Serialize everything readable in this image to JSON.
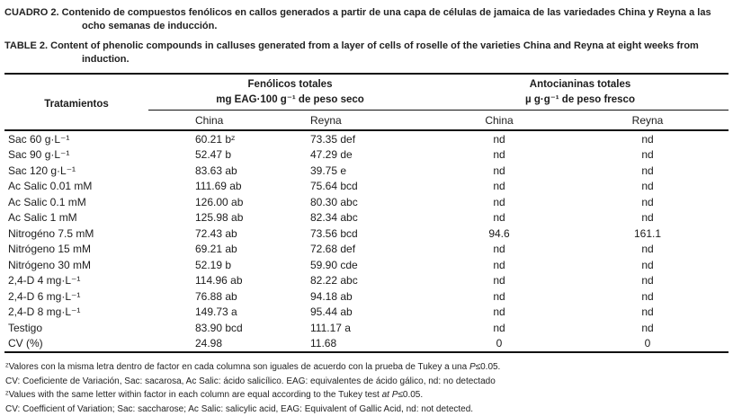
{
  "captions": {
    "es": {
      "label": "CUADRO 2.",
      "text": "Contenido de compuestos fenólicos en callos generados a partir de una capa de células de jamaica de las variedades China y Reyna a las ocho semanas de inducción."
    },
    "en": {
      "label": "TABLE 2.",
      "text": "Content of phenolic compounds in calluses generated from a layer of cells of roselle of the varieties China and Reyna at eight weeks from induction."
    }
  },
  "table": {
    "treatments_header": "Tratamientos",
    "groups": [
      {
        "title": "Fenólicos totales",
        "units": "mg EAG·100 g⁻¹ de peso seco",
        "subcols": [
          "China",
          "Reyna"
        ]
      },
      {
        "title": "Antocianinas totales",
        "units": "µ g·g⁻¹ de peso fresco",
        "subcols": [
          "China",
          "Reyna"
        ]
      }
    ],
    "rows": [
      {
        "treatment": "Sac 60 g·L⁻¹",
        "fen_china": "60.21 bᶻ",
        "fen_reyna": "73.35 def",
        "ant_china": "nd",
        "ant_reyna": "nd"
      },
      {
        "treatment": "Sac 90 g·L⁻¹",
        "fen_china": "52.47 b",
        "fen_reyna": "47.29 de",
        "ant_china": "nd",
        "ant_reyna": "nd"
      },
      {
        "treatment": "Sac 120 g·L⁻¹",
        "fen_china": "83.63 ab",
        "fen_reyna": "39.75 e",
        "ant_china": "nd",
        "ant_reyna": "nd"
      },
      {
        "treatment": "Ac Salic 0.01 mM",
        "fen_china": "111.69 ab",
        "fen_reyna": "75.64 bcd",
        "ant_china": "nd",
        "ant_reyna": "nd"
      },
      {
        "treatment": "Ac Salic 0.1 mM",
        "fen_china": "126.00 ab",
        "fen_reyna": "80.30 abc",
        "ant_china": "nd",
        "ant_reyna": "nd"
      },
      {
        "treatment": "Ac Salic 1 mM",
        "fen_china": "125.98 ab",
        "fen_reyna": "82.34 abc",
        "ant_china": "nd",
        "ant_reyna": "nd"
      },
      {
        "treatment": "Nitrogéno 7.5 mM",
        "fen_china": "72.43 ab",
        "fen_reyna": "73.56 bcd",
        "ant_china": "94.6",
        "ant_reyna": "161.1"
      },
      {
        "treatment": "Nitrógeno 15 mM",
        "fen_china": "69.21 ab",
        "fen_reyna": "72.68 def",
        "ant_china": "nd",
        "ant_reyna": "nd"
      },
      {
        "treatment": "Nitrógeno 30 mM",
        "fen_china": "52.19 b",
        "fen_reyna": "59.90 cde",
        "ant_china": "nd",
        "ant_reyna": "nd"
      },
      {
        "treatment": "2,4-D 4 mg·L⁻¹",
        "fen_china": "114.96 ab",
        "fen_reyna": "82.22 abc",
        "ant_china": "nd",
        "ant_reyna": "nd"
      },
      {
        "treatment": "2,4-D 6 mg·L⁻¹",
        "fen_china": "76.88 ab",
        "fen_reyna": "94.18 ab",
        "ant_china": "nd",
        "ant_reyna": "nd"
      },
      {
        "treatment": "2,4-D 8 mg·L⁻¹",
        "fen_china": "149.73 a",
        "fen_reyna": "95.44 ab",
        "ant_china": "nd",
        "ant_reyna": "nd"
      },
      {
        "treatment": "Testigo",
        "fen_china": "83.90 bcd",
        "fen_reyna": "111.17 a",
        "ant_china": "nd",
        "ant_reyna": "nd"
      },
      {
        "treatment": "CV (%)",
        "fen_china": "24.98",
        "fen_reyna": "11.68",
        "ant_china": "0",
        "ant_reyna": "0"
      }
    ]
  },
  "footnotes": [
    {
      "parts": [
        {
          "text": "ᶻValores con la misma letra dentro de factor en cada columna son iguales de acuerdo con la prueba de Tukey a una "
        },
        {
          "text": "P",
          "italic": true
        },
        {
          "text": "≤0.05."
        }
      ]
    },
    {
      "parts": [
        {
          "text": "CV: Coeficiente de Variación, Sac: sacarosa, Ac Salic: ácido salicílico. EAG: equivalentes de ácido gálico, nd: no detectado"
        }
      ]
    },
    {
      "parts": [
        {
          "text": "ᶻValues with the same letter within factor in each column are equal according to the Tukey test "
        },
        {
          "text": "at P",
          "italic": true
        },
        {
          "text": "≤0.05."
        }
      ]
    },
    {
      "parts": [
        {
          "text": "CV: Coefficient of Variation; Sac: saccharose; Ac Salic: salicylic acid, EAG: Equivalent of Gallic Acid, nd: not detected."
        }
      ]
    }
  ]
}
